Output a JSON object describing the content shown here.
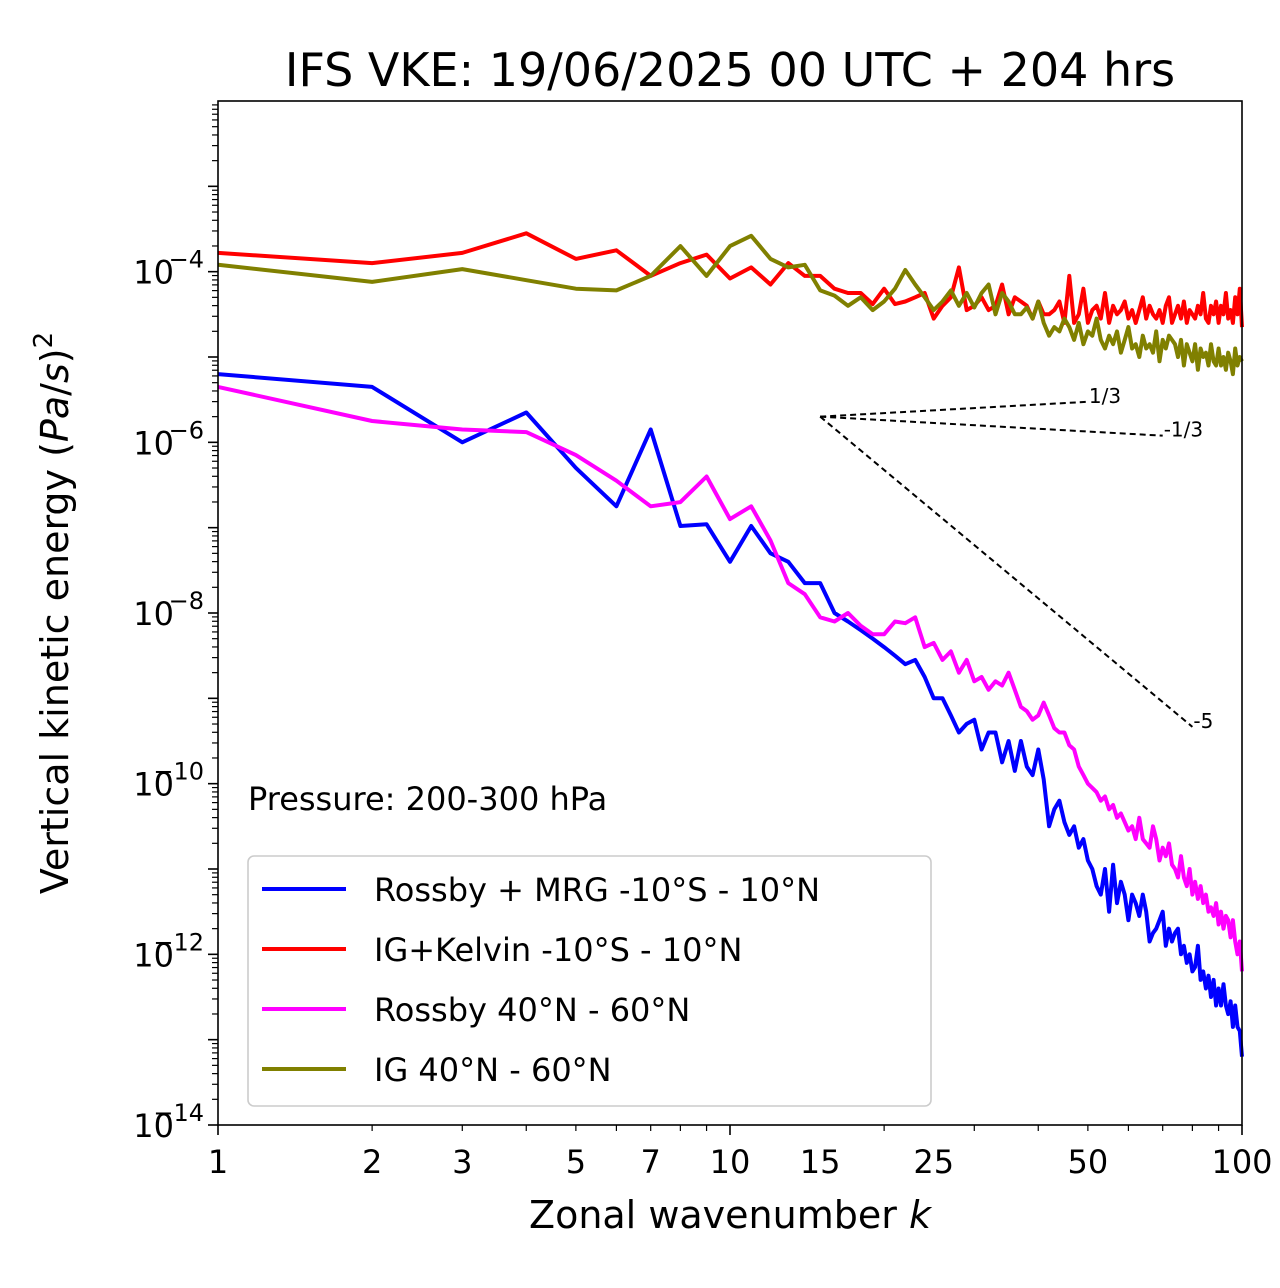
{
  "chart_data": {
    "type": "line",
    "title": "IFS VKE: 19/06/2025 00 UTC + 204 hrs",
    "xlabel": "Zonal wavenumber k",
    "ylabel": "Vertical kinetic energy (Pa/s)^2",
    "xscale": "log",
    "yscale": "log",
    "xlim": [
      1,
      100
    ],
    "ylim": [
      1e-14,
      0.01
    ],
    "x_ticks": [
      1,
      2,
      3,
      5,
      7,
      10,
      15,
      25,
      50,
      100
    ],
    "x_tick_labels": [
      "1",
      "2",
      "3",
      "5",
      "7",
      "10",
      "15",
      "25",
      "50",
      "100"
    ],
    "y_ticks": [
      1e-14,
      1e-12,
      1e-10,
      1e-08,
      1e-06,
      0.0001
    ],
    "y_tick_exponents": [
      "−14",
      "−12",
      "−10",
      "−8",
      "−6",
      "−4"
    ],
    "y_tick_base": "10",
    "annotation": "Pressure: 200-300 hPa",
    "legend_position": "lower-left",
    "grid": false,
    "reference_slopes": [
      {
        "label": "1/3",
        "slope": 0.3333,
        "x0": 15,
        "x1": 50,
        "y0": 2e-06
      },
      {
        "label": "-1/3",
        "slope": -0.3333,
        "x0": 15,
        "x1": 70,
        "y0": 2e-06
      },
      {
        "label": "-5",
        "slope": -5,
        "x0": 15,
        "x1": 80,
        "y0": 2e-06
      }
    ],
    "series": [
      {
        "name": "Rossby + MRG -10°S - 10°N",
        "color": "#0000ff",
        "kstart": 1,
        "log10_values": [
          -5.2,
          -5.35,
          -6.0,
          -5.65,
          -6.3,
          -6.75,
          -5.85,
          -6.98,
          -6.96,
          -7.4,
          -6.98,
          -7.3,
          -7.4,
          -7.65,
          -7.65,
          -8.0,
          -8.1,
          -8.2,
          -8.3,
          -8.4,
          -8.5,
          -8.6,
          -8.55,
          -8.75,
          -9.0,
          -9.0,
          -9.2,
          -9.4,
          -9.3,
          -9.25,
          -9.6,
          -9.4,
          -9.4,
          -9.75,
          -9.5,
          -9.85,
          -9.5,
          -9.8,
          -9.9,
          -9.6,
          -9.95,
          -10.5,
          -10.3,
          -10.2,
          -10.45,
          -10.6,
          -10.5,
          -10.75,
          -10.65,
          -10.9,
          -11.0,
          -11.2,
          -11.3,
          -11.0,
          -11.5,
          -10.95,
          -11.4,
          -11.15,
          -11.3,
          -11.6,
          -11.3,
          -11.4,
          -11.55,
          -11.3,
          -11.5,
          -11.85,
          -11.75,
          -11.7,
          -11.6,
          -11.5,
          -11.9,
          -11.7,
          -11.85,
          -11.75,
          -11.7,
          -12.0,
          -11.9,
          -12.1,
          -12.0,
          -12.2,
          -12.15,
          -11.9,
          -12.3,
          -12.2,
          -12.4,
          -12.25,
          -12.5,
          -12.3,
          -12.6,
          -12.4,
          -12.6,
          -12.35,
          -12.6,
          -12.7,
          -12.55,
          -12.85,
          -12.6,
          -12.85,
          -12.9,
          -13.2
        ]
      },
      {
        "name": "IG+Kelvin -10°S - 10°N",
        "color": "#ff0000",
        "kstart": 1,
        "log10_values": [
          -3.78,
          -3.9,
          -3.78,
          -3.55,
          -3.85,
          -3.75,
          -4.05,
          -3.9,
          -3.8,
          -4.08,
          -3.95,
          -4.15,
          -3.9,
          -4.05,
          -4.05,
          -4.2,
          -4.25,
          -4.25,
          -4.38,
          -4.2,
          -4.38,
          -4.35,
          -4.3,
          -4.25,
          -4.55,
          -4.4,
          -4.3,
          -3.95,
          -4.45,
          -4.4,
          -4.3,
          -4.45,
          -4.4,
          -4.15,
          -4.5,
          -4.3,
          -4.35,
          -4.4,
          -4.55,
          -4.35,
          -4.5,
          -4.5,
          -4.45,
          -4.35,
          -4.6,
          -4.05,
          -4.6,
          -4.5,
          -4.2,
          -4.6,
          -4.45,
          -4.4,
          -4.55,
          -4.25,
          -4.6,
          -4.4,
          -4.5,
          -4.45,
          -4.35,
          -4.55,
          -4.45,
          -4.6,
          -4.45,
          -4.3,
          -4.55,
          -4.4,
          -4.5,
          -4.55,
          -4.45,
          -4.6,
          -4.4,
          -4.3,
          -4.6,
          -4.5,
          -4.4,
          -4.55,
          -4.35,
          -4.6,
          -4.45,
          -4.5,
          -4.55,
          -4.4,
          -4.5,
          -4.25,
          -4.55,
          -4.6,
          -4.4,
          -4.5,
          -4.35,
          -4.6,
          -4.4,
          -4.5,
          -4.25,
          -4.55,
          -4.45,
          -4.6,
          -4.3,
          -4.5,
          -4.2,
          -4.65
        ]
      },
      {
        "name": "Rossby 40°N - 60°N",
        "color": "#ff00ff",
        "kstart": 1,
        "log10_values": [
          -5.35,
          -5.75,
          -5.85,
          -5.88,
          -6.15,
          -6.45,
          -6.75,
          -6.7,
          -6.4,
          -6.9,
          -6.75,
          -7.15,
          -7.65,
          -7.78,
          -8.05,
          -8.1,
          -8.0,
          -8.15,
          -8.25,
          -8.25,
          -8.1,
          -8.12,
          -8.05,
          -8.4,
          -8.35,
          -8.55,
          -8.45,
          -8.7,
          -8.55,
          -8.8,
          -8.75,
          -8.9,
          -8.8,
          -8.85,
          -8.7,
          -8.9,
          -9.1,
          -9.15,
          -9.25,
          -9.2,
          -9.05,
          -9.2,
          -9.35,
          -9.4,
          -9.4,
          -9.55,
          -9.6,
          -9.8,
          -9.9,
          -10.0,
          -10.05,
          -10.1,
          -10.2,
          -10.15,
          -10.3,
          -10.25,
          -10.4,
          -10.35,
          -10.45,
          -10.55,
          -10.5,
          -10.65,
          -10.4,
          -10.65,
          -10.7,
          -10.75,
          -10.5,
          -10.65,
          -10.9,
          -10.75,
          -10.85,
          -10.7,
          -10.95,
          -11.0,
          -11.1,
          -10.85,
          -11.1,
          -11.2,
          -11.0,
          -11.3,
          -11.15,
          -11.35,
          -11.2,
          -11.4,
          -11.3,
          -11.5,
          -11.45,
          -11.55,
          -11.4,
          -11.65,
          -11.5,
          -11.7,
          -11.55,
          -11.6,
          -11.8,
          -11.6,
          -11.85,
          -12.0,
          -11.85,
          -12.2
        ]
      },
      {
        "name": "IG 40°N - 60°N",
        "color": "#808000",
        "kstart": 1,
        "log10_values": [
          -3.92,
          -4.12,
          -3.97,
          -4.1,
          -4.2,
          -4.22,
          -4.05,
          -3.7,
          -4.05,
          -3.7,
          -3.58,
          -3.85,
          -3.95,
          -3.92,
          -4.22,
          -4.28,
          -4.4,
          -4.3,
          -4.45,
          -4.35,
          -4.2,
          -3.98,
          -4.15,
          -4.3,
          -4.45,
          -4.35,
          -4.22,
          -4.4,
          -4.25,
          -4.42,
          -4.25,
          -4.15,
          -4.5,
          -4.25,
          -4.35,
          -4.5,
          -4.5,
          -4.42,
          -4.55,
          -4.35,
          -4.6,
          -4.75,
          -4.65,
          -4.7,
          -4.55,
          -4.65,
          -4.8,
          -4.6,
          -4.85,
          -4.7,
          -4.75,
          -4.55,
          -4.8,
          -4.9,
          -4.75,
          -4.85,
          -4.7,
          -4.95,
          -4.8,
          -4.65,
          -4.9,
          -4.85,
          -5.0,
          -4.75,
          -4.9,
          -4.85,
          -4.95,
          -4.7,
          -5.05,
          -4.8,
          -4.9,
          -4.75,
          -4.8,
          -4.85,
          -5.0,
          -4.8,
          -5.1,
          -4.85,
          -4.95,
          -5.05,
          -4.85,
          -5.15,
          -4.9,
          -5.0,
          -4.95,
          -5.1,
          -4.85,
          -5.05,
          -5.1,
          -4.9,
          -5.1,
          -5.0,
          -5.15,
          -4.95,
          -5.05,
          -5.2,
          -4.9,
          -5.1,
          -5.0,
          -5.05
        ]
      }
    ]
  }
}
